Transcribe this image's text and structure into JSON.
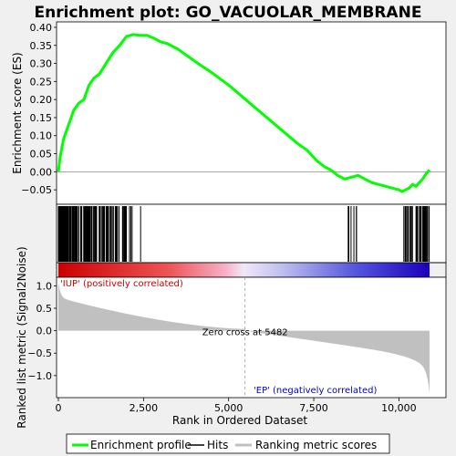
{
  "chart_data": {
    "title": "Enrichment plot: GO_VACUOLAR_MEMBRANE",
    "type": "line",
    "total_ranks": 10900,
    "panels": {
      "es": {
        "ylabel": "Enrichment score (ES)",
        "ylim": [
          -0.085,
          0.41
        ],
        "yticks": [
          -0.05,
          0.0,
          0.05,
          0.1,
          0.15,
          0.2,
          0.25,
          0.3,
          0.35,
          0.4
        ],
        "ytick_labels": [
          "−0.05",
          "0.00",
          "0.05",
          "0.10",
          "0.15",
          "0.20",
          "0.25",
          "0.30",
          "0.35",
          "0.40"
        ],
        "series": [
          {
            "name": "Enrichment profile",
            "color": "#00ff00",
            "x": [
              0,
              50,
              150,
              300,
              450,
              600,
              750,
              900,
              1050,
              1200,
              1400,
              1600,
              1800,
              2000,
              2200,
              2400,
              2600,
              2800,
              3000,
              3200,
              3500,
              3800,
              4100,
              4500,
              5000,
              5500,
              6000,
              6500,
              7000,
              7300,
              7600,
              7800,
              8000,
              8200,
              8400,
              8600,
              8800,
              9000,
              9200,
              9400,
              9600,
              9800,
              10000,
              10100,
              10200,
              10300,
              10400,
              10500,
              10600,
              10700,
              10800,
              10900
            ],
            "y": [
              0.0,
              0.04,
              0.09,
              0.13,
              0.17,
              0.19,
              0.2,
              0.24,
              0.26,
              0.27,
              0.3,
              0.33,
              0.35,
              0.375,
              0.38,
              0.378,
              0.378,
              0.37,
              0.36,
              0.355,
              0.34,
              0.32,
              0.3,
              0.275,
              0.24,
              0.2,
              0.16,
              0.12,
              0.08,
              0.06,
              0.03,
              0.015,
              0.005,
              -0.01,
              -0.02,
              -0.015,
              -0.01,
              -0.02,
              -0.03,
              -0.035,
              -0.04,
              -0.045,
              -0.05,
              -0.055,
              -0.05,
              -0.045,
              -0.035,
              -0.04,
              -0.03,
              -0.02,
              -0.005,
              0.005
            ]
          }
        ]
      },
      "metric": {
        "ylabel": "Ranked list metric (Signal2Noise)",
        "ylim": [
          -1.45,
          1.15
        ],
        "yticks": [
          -1.0,
          -0.5,
          0.0,
          0.5,
          1.0
        ],
        "ytick_labels": [
          "−1.0",
          "−0.5",
          "0.0",
          "0.5",
          "1.0"
        ],
        "zero_cross": 5482,
        "zero_cross_label": "Zero cross at 5482",
        "pos_label": "'IUP' (positively correlated)",
        "neg_label": "'EP' (negatively correlated)"
      }
    },
    "xlabel": "Rank in Ordered Dataset",
    "xticks": [
      0,
      2500,
      5000,
      7500,
      10000
    ],
    "xtick_labels": [
      "0",
      "2,500",
      "5,000",
      "7,500",
      "10,000"
    ],
    "legend": {
      "position": "bottom",
      "items": [
        {
          "label": "Enrichment profile",
          "color": "#00ff00"
        },
        {
          "label": "Hits",
          "color": "#000000"
        },
        {
          "label": "Ranking metric scores",
          "color": "#c0c0c0"
        }
      ]
    },
    "colors": {
      "profile": "#00ff00",
      "hits": "#000000",
      "metric_fill": "#c0c0c0",
      "pos_text": "#cc0000",
      "neg_text": "#0000cc"
    }
  }
}
